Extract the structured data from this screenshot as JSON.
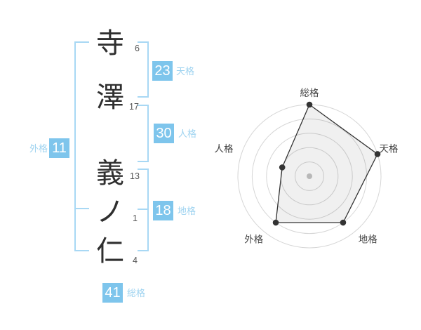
{
  "name_diagram": {
    "characters": [
      {
        "char": "寺",
        "strokes": "6"
      },
      {
        "char": "澤",
        "strokes": "17"
      },
      {
        "char": "義",
        "strokes": "13"
      },
      {
        "char": "ノ",
        "strokes": "1"
      },
      {
        "char": "仁",
        "strokes": "4"
      }
    ],
    "kaku": {
      "tenkaku": {
        "value": "23",
        "label": "天格"
      },
      "jinkaku": {
        "value": "30",
        "label": "人格"
      },
      "chikaku": {
        "value": "18",
        "label": "地格"
      },
      "gaikaku": {
        "value": "11",
        "label": "外格"
      },
      "soukaku": {
        "value": "41",
        "label": "総格"
      }
    },
    "colors": {
      "box_blue": "#7ec5ec",
      "bracket_blue": "#a8d8f4",
      "label_blue": "#9ed3f0"
    }
  },
  "chart_data": {
    "type": "radar",
    "title": "",
    "axes": [
      "総格",
      "天格",
      "地格",
      "外格",
      "人格"
    ],
    "values": [
      5,
      5,
      4,
      4,
      2
    ],
    "scale_max": 5,
    "rings": 5,
    "grid": "concentric-circles",
    "legend": "none",
    "ring_color": "#d6d6d6",
    "polygon_color": "#333333",
    "polygon_fill": "rgba(0,0,0,0.06)",
    "center_dot_color": "#c4c4c4"
  }
}
